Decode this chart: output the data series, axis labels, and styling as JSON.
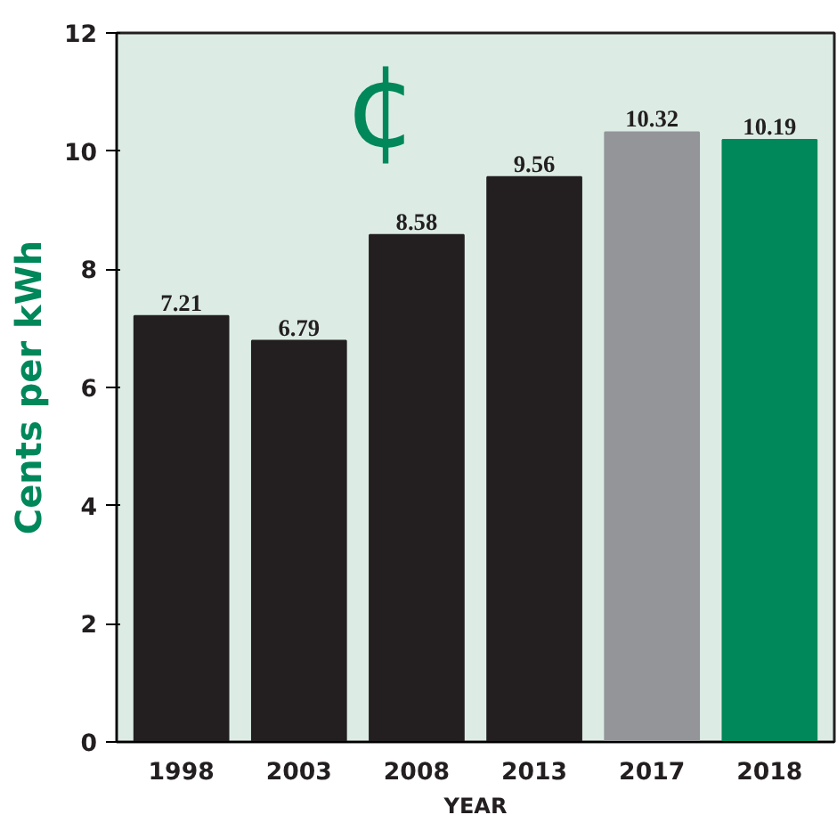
{
  "chart_data": {
    "type": "bar",
    "xlabel": "YEAR",
    "ylabel": "Cents per kWh",
    "categories": [
      "1998",
      "2003",
      "2008",
      "2013",
      "2017",
      "2018"
    ],
    "values": [
      7.21,
      6.79,
      8.58,
      9.56,
      10.32,
      10.19
    ],
    "colors": [
      "#231f20",
      "#231f20",
      "#231f20",
      "#231f20",
      "#939598",
      "#00875a"
    ],
    "data_labels": true,
    "ylim": [
      0,
      12
    ],
    "yticks": [
      0,
      2,
      4,
      6,
      8,
      10,
      12
    ],
    "grid": false,
    "annotations": [
      "¢"
    ]
  }
}
